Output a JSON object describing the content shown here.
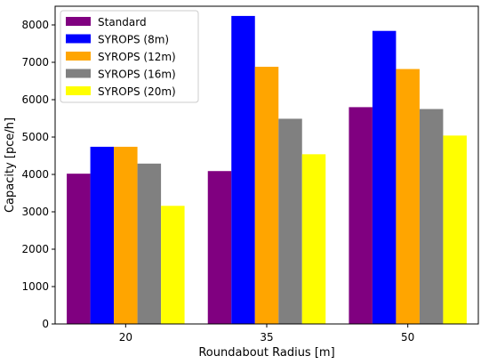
{
  "chart_data": {
    "type": "bar",
    "title": "",
    "xlabel": "Roundabout Radius [m]",
    "ylabel": "Capacity [pce/h]",
    "categories": [
      "20",
      "35",
      "50"
    ],
    "ylim": [
      0,
      8500
    ],
    "yticks": [
      "0",
      "1000",
      "2000",
      "3000",
      "4000",
      "5000",
      "6000",
      "7000",
      "8000"
    ],
    "legend_position": "top-left",
    "grid": false,
    "series": [
      {
        "name": "Standard",
        "color": "#800080",
        "values": [
          4020,
          4090,
          5800
        ]
      },
      {
        "name": "SYROPS (8m)",
        "color": "#0000ff",
        "values": [
          4740,
          8240,
          7840
        ]
      },
      {
        "name": "SYROPS (12m)",
        "color": "#ffa500",
        "values": [
          4740,
          6880,
          6820
        ]
      },
      {
        "name": "SYROPS (16m)",
        "color": "#808080",
        "values": [
          4290,
          5490,
          5750
        ]
      },
      {
        "name": "SYROPS (20m)",
        "color": "#ffff00",
        "values": [
          3160,
          4540,
          5040
        ]
      }
    ]
  }
}
